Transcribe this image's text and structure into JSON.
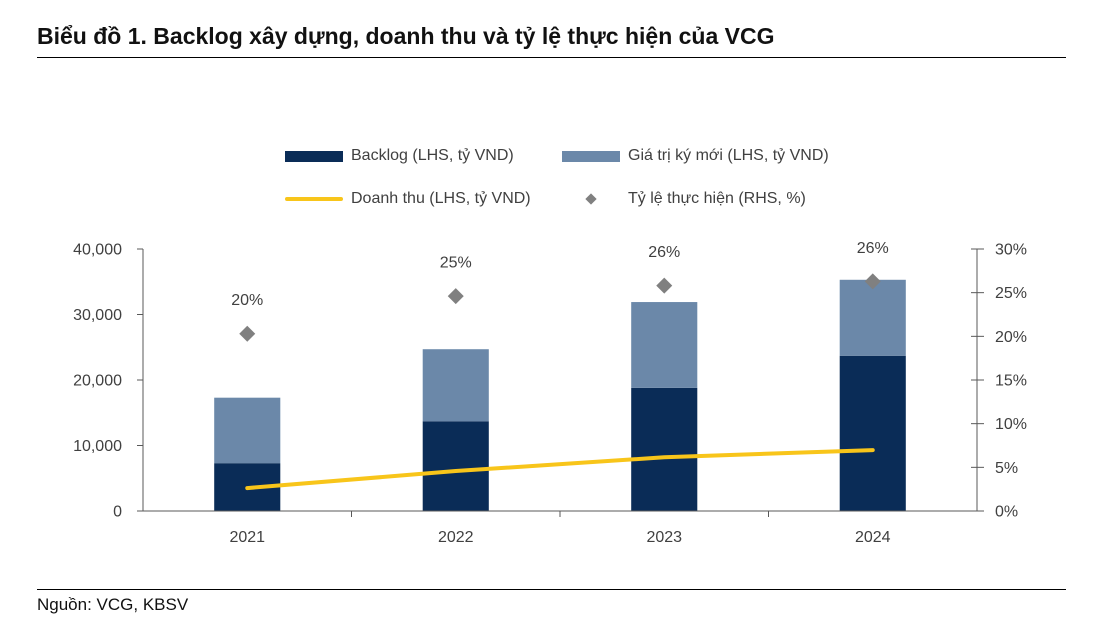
{
  "source": "Nguồn: VCG, KBSV",
  "chart_data": {
    "type": "bar",
    "title": "Biểu đồ 1. Backlog xây dựng, doanh thu và tỷ lệ thực hiện của VCG",
    "xlabel": "",
    "ylabel": "",
    "stacked": true,
    "grid": false,
    "legend": "top-center",
    "categories": [
      "2021",
      "2022",
      "2023",
      "2024"
    ],
    "series": [
      {
        "name": "Backlog (LHS, tỷ VND)",
        "type": "bar",
        "axis": "left",
        "color": "#0a2c57",
        "values": [
          7300,
          13700,
          18800,
          23700
        ]
      },
      {
        "name": "Giá trị ký mới (LHS, tỷ VND)",
        "type": "bar",
        "axis": "left",
        "color": "#6b88a9",
        "values": [
          10000,
          11000,
          13100,
          11600
        ]
      },
      {
        "name": "Doanh thu (LHS, tỷ VND)",
        "type": "line",
        "axis": "left",
        "color": "#f8c51a",
        "values": [
          3500,
          6100,
          8200,
          9300
        ]
      },
      {
        "name": "Tỷ lệ thực hiện (RHS, %)",
        "type": "scatter",
        "axis": "right",
        "color": "#808080",
        "values": [
          20.3,
          24.6,
          25.8,
          26.3
        ],
        "labels": [
          "20%",
          "25%",
          "26%",
          "26%"
        ]
      }
    ],
    "y_left": {
      "min": 0,
      "max": 40000,
      "ticks": [
        0,
        10000,
        20000,
        30000,
        40000
      ],
      "tick_labels": [
        "0",
        "10,000",
        "20,000",
        "30,000",
        "40,000"
      ]
    },
    "y_right": {
      "min": 0,
      "max": 30,
      "ticks": [
        0,
        5,
        10,
        15,
        20,
        25,
        30
      ],
      "tick_labels": [
        "0%",
        "5%",
        "10%",
        "15%",
        "20%",
        "25%",
        "30%"
      ]
    }
  }
}
